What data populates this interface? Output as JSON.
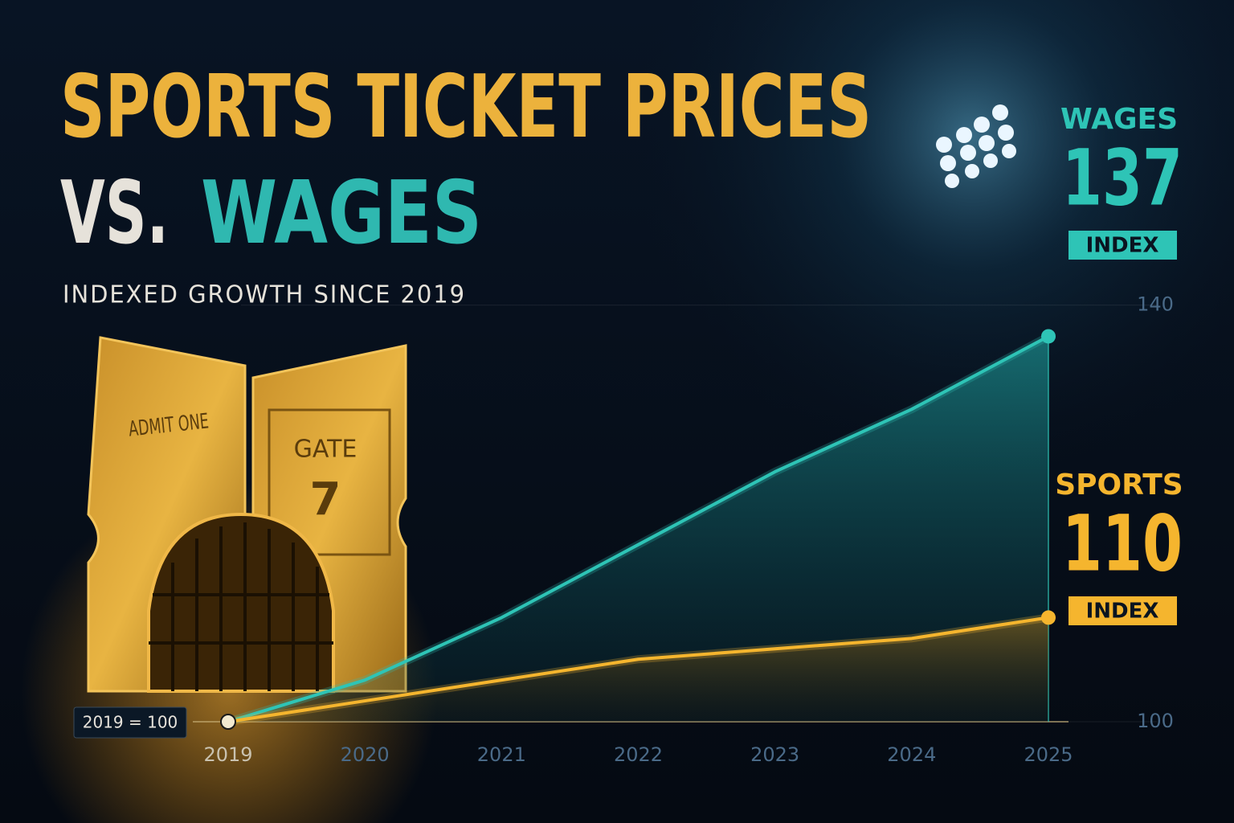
{
  "chart_data": {
    "type": "line",
    "title_lines": {
      "first": "SPORTS TICKET PRICES",
      "vs": "VS.",
      "second": "WAGES"
    },
    "subtitle": "INDEXED GROWTH SINCE 2019",
    "base_note": "2019 = 100",
    "end_unit": "INDEX",
    "ticket": {
      "left": "ADMIT ONE",
      "right_top": "GATE",
      "right_number": "7"
    },
    "categories": [
      "2019",
      "2020",
      "2021",
      "2022",
      "2023",
      "2024",
      "2025"
    ],
    "series": [
      {
        "name": "WAGES",
        "color": "#2ec4b6",
        "values": [
          100,
          104,
          110,
          117,
          124,
          130,
          137
        ]
      },
      {
        "name": "SPORTS",
        "color": "#f5b52e",
        "values": [
          100,
          102,
          104,
          106,
          107,
          108,
          110
        ]
      }
    ],
    "ylim": [
      100,
      150
    ],
    "yticks": [
      100,
      140
    ],
    "grid": true
  }
}
